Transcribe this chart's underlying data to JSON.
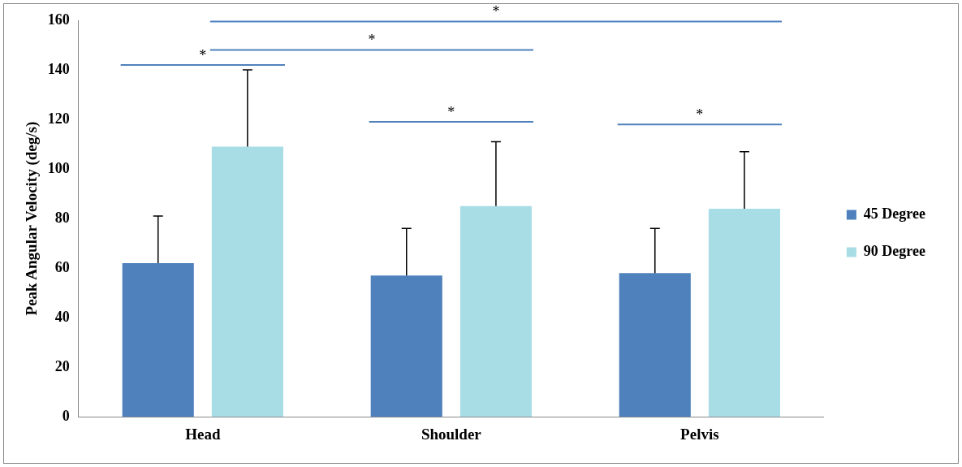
{
  "chart_data": {
    "type": "bar",
    "ylabel": "Peak Angular Velocity (deg/s)",
    "categories": [
      "Head",
      "Shoulder",
      "Pelvis"
    ],
    "series": [
      {
        "name": "45 Degree",
        "color": "#4f81bd",
        "values": [
          62,
          57,
          58
        ],
        "errors": [
          [
            62,
            81
          ],
          [
            57,
            76
          ],
          [
            58,
            76
          ]
        ]
      },
      {
        "name": "90 Degree",
        "color": "#a9dde6",
        "values": [
          109,
          85,
          84
        ],
        "errors": [
          [
            109,
            140
          ],
          [
            85,
            111
          ],
          [
            84,
            107
          ]
        ]
      }
    ],
    "ylim": [
      0,
      160
    ],
    "yticks": [
      0,
      20,
      40,
      60,
      80,
      100,
      120,
      140,
      160
    ],
    "grid": false,
    "legend": "right",
    "annotations": [
      "*",
      "*",
      "*",
      "*",
      "*"
    ]
  }
}
